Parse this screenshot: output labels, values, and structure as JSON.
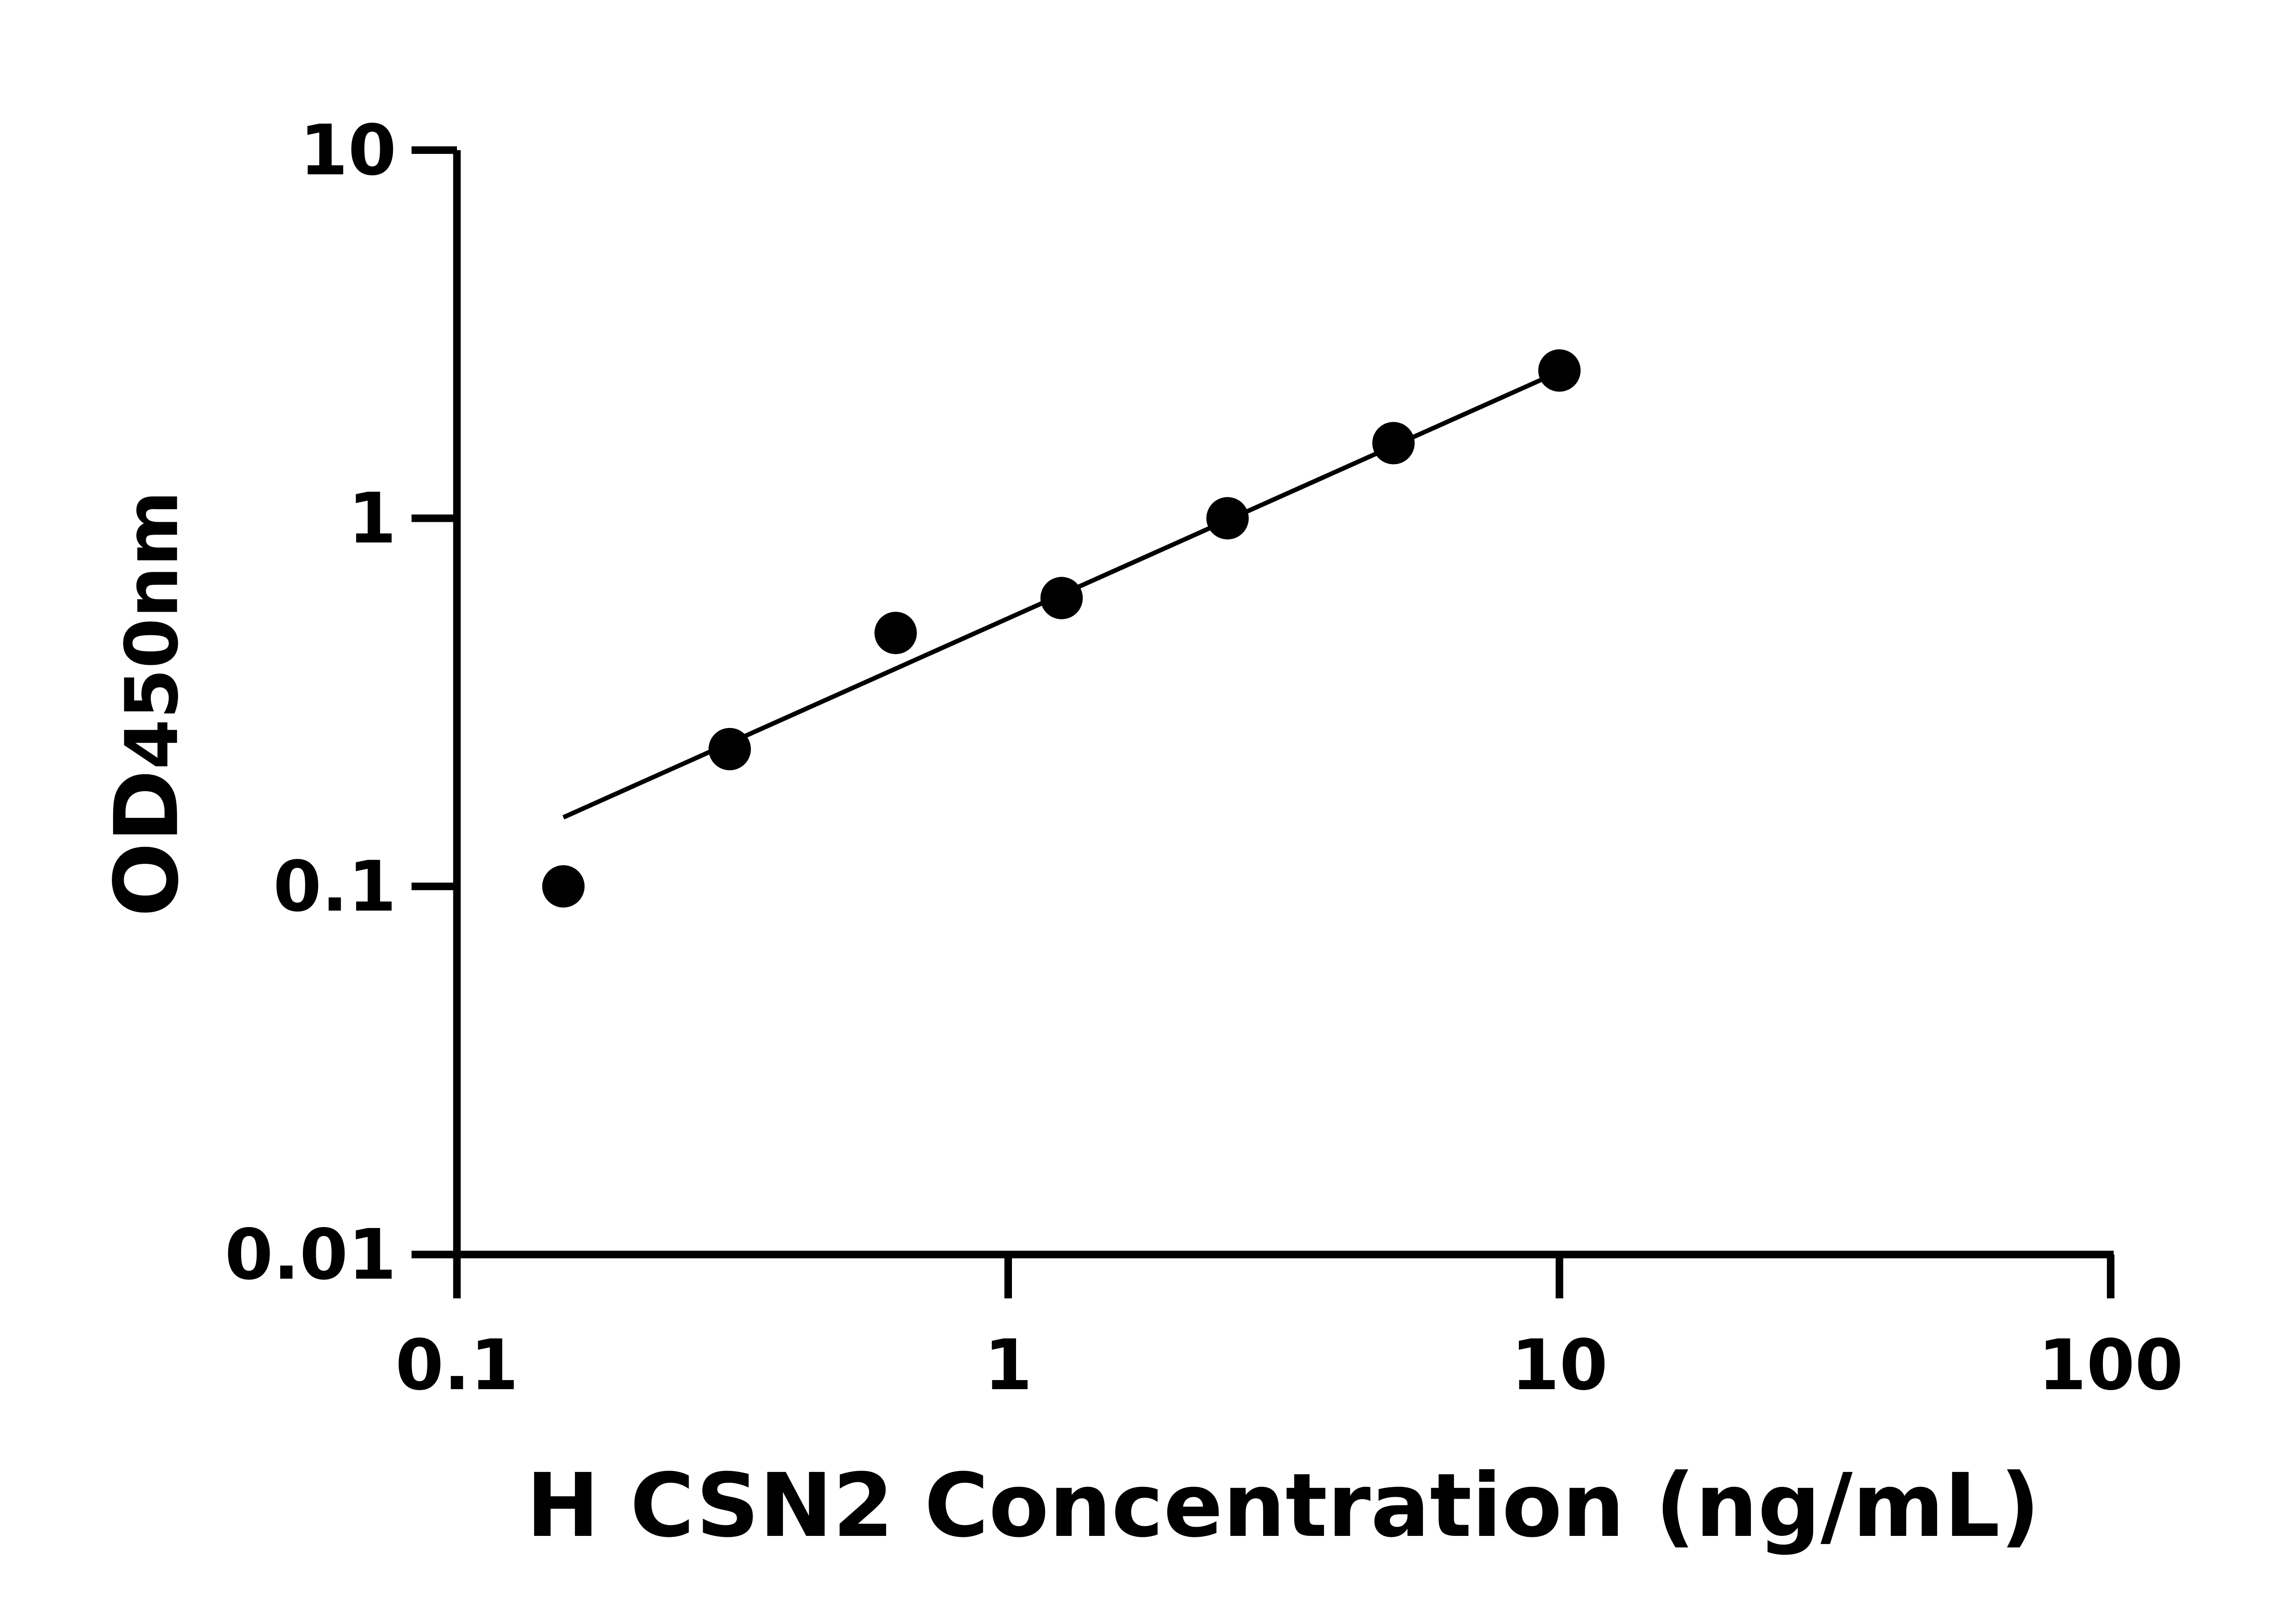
{
  "chart_data": {
    "type": "scatter",
    "title": "",
    "xlabel": "H CSN2 Concentration (ng/mL)",
    "ylabel": "OD450nm",
    "x_scale": "log",
    "y_scale": "log",
    "xlim": [
      0.1,
      100
    ],
    "ylim": [
      0.01,
      10
    ],
    "x_ticks": [
      "0.1",
      "1",
      "10",
      "100"
    ],
    "y_ticks": [
      "0.01",
      "0.1",
      "1",
      "10"
    ],
    "grid": false,
    "legend": "none",
    "points": {
      "x": [
        0.156,
        0.3125,
        0.625,
        1.25,
        2.5,
        5,
        10
      ],
      "y": [
        0.1,
        0.236,
        0.488,
        0.607,
        1.0,
        1.6,
        2.52
      ]
    },
    "fit_line": {
      "x": [
        0.156,
        9.4
      ],
      "y": [
        0.154,
        2.4
      ]
    },
    "colors": {
      "points": "#000000",
      "line": "#000000",
      "axes": "#000000"
    }
  }
}
